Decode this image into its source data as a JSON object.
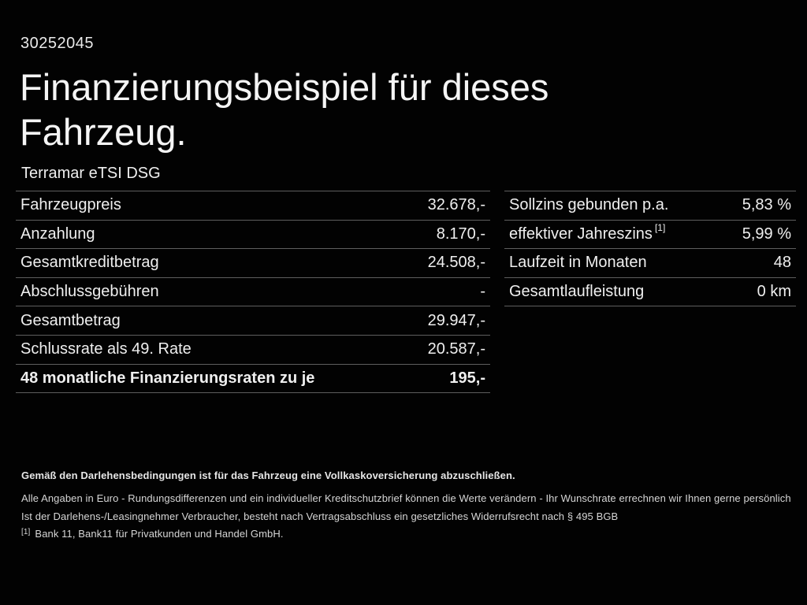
{
  "page": {
    "id_number": "30252045",
    "title_line1": "Finanzierungsbeispiel für dieses",
    "title_line2": "Fahrzeug.",
    "vehicle_name": "Terramar eTSI DSG"
  },
  "left_table": {
    "rows": [
      {
        "label": "Fahrzeugpreis",
        "value": "32.678,-"
      },
      {
        "label": "Anzahlung",
        "value": "8.170,-"
      },
      {
        "label": "Gesamtkreditbetrag",
        "value": "24.508,-"
      },
      {
        "label": "Abschlussgebühren",
        "value": "-"
      },
      {
        "label": "Gesamtbetrag",
        "value": "29.947,-"
      },
      {
        "label": "Schlussrate als 49. Rate",
        "value": "20.587,-"
      },
      {
        "label": "48 monatliche Finanzierungsraten zu je",
        "value": "195,-"
      }
    ]
  },
  "right_table": {
    "rows": [
      {
        "label": "Sollzins gebunden p.a.",
        "superscript": "",
        "value": "5,83 %"
      },
      {
        "label": "effektiver Jahreszins",
        "superscript": "[1]",
        "value": "5,99 %"
      },
      {
        "label": "Laufzeit in Monaten",
        "superscript": "",
        "value": "48"
      },
      {
        "label": "Gesamtlaufleistung",
        "superscript": "",
        "value": "0 km"
      }
    ]
  },
  "footnotes": {
    "insurance_note": "Gemäß den Darlehensbedingungen ist für das Fahrzeug eine Vollkaskoversicherung abzuschließen.",
    "values_note": "Alle Angaben in Euro - Rundungsdifferenzen und ein individueller Kreditschutzbrief können die Werte verändern - Ihr Wunschrate errechnen wir Ihnen gerne persönlich",
    "withdrawal_note": "Ist der Darlehens-/Leasingnehmer Verbraucher, besteht nach Vertragsabschluss ein gesetzliches Widerrufsrecht nach § 495 BGB",
    "bank_marker": "[1]",
    "bank_note": "Bank 11, Bank11 für Privatkunden und Handel GmbH."
  },
  "colors": {
    "background": "#000000",
    "text": "#f2f2f2",
    "divider": "#5e5e5e"
  }
}
